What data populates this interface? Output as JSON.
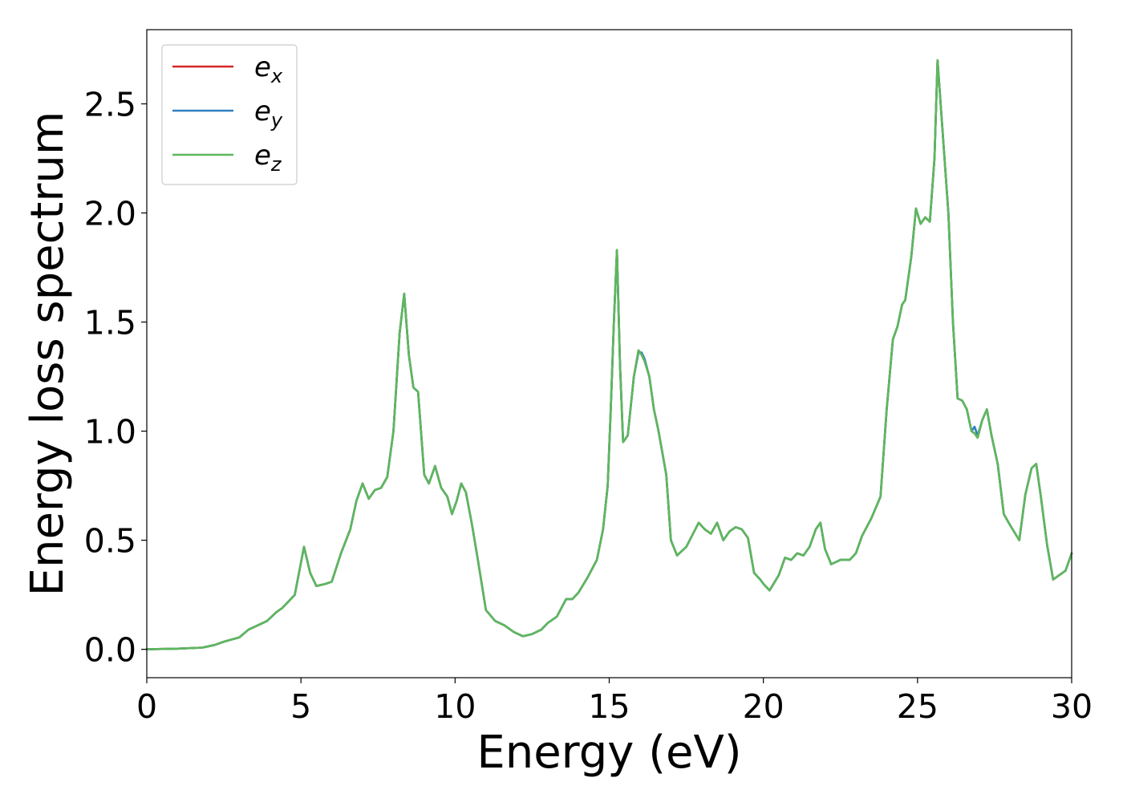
{
  "chart_data": {
    "type": "line",
    "title": "",
    "xlabel": "Energy (eV)",
    "ylabel": "Energy loss spectrum",
    "xlim": [
      0,
      30
    ],
    "ylim": [
      -0.13,
      2.84
    ],
    "xticks": [
      0,
      5,
      10,
      15,
      20,
      25,
      30
    ],
    "yticks": [
      0.0,
      0.5,
      1.0,
      1.5,
      2.0,
      2.5
    ],
    "xtick_labels": [
      "0",
      "5",
      "10",
      "15",
      "20",
      "25",
      "30"
    ],
    "ytick_labels": [
      "0.0",
      "0.5",
      "1.0",
      "1.5",
      "2.0",
      "2.5"
    ],
    "grid": false,
    "legend_position": "top-left",
    "series": [
      {
        "name": "e_x",
        "label_base": "e",
        "label_sub": "x",
        "color": "#d62728",
        "x": [
          0,
          1,
          1.8,
          2.2,
          2.5,
          3,
          3.3,
          3.6,
          3.9,
          4.2,
          4.4,
          4.6,
          4.8,
          5.1,
          5.3,
          5.5,
          5.8,
          6.0,
          6.3,
          6.6,
          6.8,
          7.0,
          7.2,
          7.4,
          7.6,
          7.8,
          8.0,
          8.2,
          8.35,
          8.5,
          8.65,
          8.8,
          9.0,
          9.15,
          9.35,
          9.55,
          9.75,
          9.9,
          10.05,
          10.2,
          10.35,
          10.55,
          10.75,
          11.0,
          11.3,
          11.6,
          11.9,
          12.2,
          12.5,
          12.8,
          13.0,
          13.3,
          13.6,
          13.8,
          14.0,
          14.3,
          14.6,
          14.8,
          14.95,
          15.05,
          15.15,
          15.25,
          15.35,
          15.45,
          15.6,
          15.8,
          15.95,
          16.05,
          16.15,
          16.3,
          16.45,
          16.6,
          16.85,
          17.0,
          17.2,
          17.5,
          17.9,
          18.1,
          18.3,
          18.5,
          18.7,
          18.9,
          19.1,
          19.3,
          19.5,
          19.7,
          19.9,
          20.0,
          20.2,
          20.5,
          20.7,
          20.9,
          21.1,
          21.3,
          21.5,
          21.7,
          21.85,
          22.0,
          22.2,
          22.5,
          22.8,
          23.0,
          23.2,
          23.5,
          23.8,
          24.0,
          24.2,
          24.35,
          24.5,
          24.6,
          24.8,
          24.95,
          25.1,
          25.25,
          25.4,
          25.55,
          25.65,
          25.8,
          26.0,
          26.15,
          26.3,
          26.45,
          26.6,
          26.75,
          26.85,
          26.95,
          27.1,
          27.25,
          27.4,
          27.6,
          27.8,
          28.0,
          28.3,
          28.5,
          28.7,
          28.85,
          29.0,
          29.2,
          29.4,
          29.6,
          29.8,
          30.0
        ],
        "y": [
          0,
          0.003,
          0.008,
          0.02,
          0.035,
          0.055,
          0.09,
          0.11,
          0.13,
          0.17,
          0.19,
          0.22,
          0.25,
          0.47,
          0.35,
          0.29,
          0.3,
          0.31,
          0.44,
          0.55,
          0.68,
          0.76,
          0.69,
          0.73,
          0.74,
          0.79,
          1.0,
          1.45,
          1.63,
          1.35,
          1.2,
          1.18,
          0.8,
          0.76,
          0.84,
          0.74,
          0.7,
          0.62,
          0.68,
          0.76,
          0.72,
          0.57,
          0.4,
          0.18,
          0.13,
          0.11,
          0.08,
          0.06,
          0.07,
          0.09,
          0.12,
          0.15,
          0.23,
          0.23,
          0.26,
          0.33,
          0.41,
          0.55,
          0.75,
          1.1,
          1.5,
          1.83,
          1.3,
          0.95,
          0.98,
          1.25,
          1.37,
          1.35,
          1.32,
          1.25,
          1.1,
          1.0,
          0.8,
          0.5,
          0.43,
          0.47,
          0.58,
          0.55,
          0.53,
          0.58,
          0.5,
          0.54,
          0.56,
          0.55,
          0.51,
          0.35,
          0.32,
          0.3,
          0.27,
          0.34,
          0.42,
          0.41,
          0.44,
          0.43,
          0.47,
          0.55,
          0.58,
          0.46,
          0.39,
          0.41,
          0.41,
          0.44,
          0.52,
          0.6,
          0.7,
          1.1,
          1.42,
          1.48,
          1.58,
          1.6,
          1.8,
          2.02,
          1.95,
          1.98,
          1.96,
          2.25,
          2.7,
          2.4,
          2.0,
          1.5,
          1.15,
          1.14,
          1.1,
          1.0,
          0.99,
          0.97,
          1.05,
          1.1,
          0.98,
          0.85,
          0.62,
          0.57,
          0.5,
          0.71,
          0.83,
          0.85,
          0.7,
          0.48,
          0.32,
          0.34,
          0.36,
          0.44
        ]
      },
      {
        "name": "e_y",
        "label_base": "e",
        "label_sub": "y",
        "color": "#2f7fc1",
        "x": [
          0,
          1,
          1.8,
          2.2,
          2.5,
          3,
          3.3,
          3.6,
          3.9,
          4.2,
          4.4,
          4.6,
          4.8,
          5.1,
          5.3,
          5.5,
          5.8,
          6.0,
          6.3,
          6.6,
          6.8,
          7.0,
          7.2,
          7.4,
          7.6,
          7.8,
          8.0,
          8.2,
          8.35,
          8.5,
          8.65,
          8.8,
          9.0,
          9.15,
          9.35,
          9.55,
          9.75,
          9.9,
          10.05,
          10.2,
          10.35,
          10.55,
          10.75,
          11.0,
          11.3,
          11.6,
          11.9,
          12.2,
          12.5,
          12.8,
          13.0,
          13.3,
          13.6,
          13.8,
          14.0,
          14.3,
          14.6,
          14.8,
          14.95,
          15.05,
          15.15,
          15.25,
          15.35,
          15.45,
          15.6,
          15.8,
          15.95,
          16.05,
          16.15,
          16.3,
          16.45,
          16.6,
          16.85,
          17.0,
          17.2,
          17.5,
          17.9,
          18.1,
          18.3,
          18.5,
          18.7,
          18.9,
          19.1,
          19.3,
          19.5,
          19.7,
          19.9,
          20.0,
          20.2,
          20.5,
          20.7,
          20.9,
          21.1,
          21.3,
          21.5,
          21.7,
          21.85,
          22.0,
          22.2,
          22.5,
          22.8,
          23.0,
          23.2,
          23.5,
          23.8,
          24.0,
          24.2,
          24.35,
          24.5,
          24.6,
          24.8,
          24.95,
          25.1,
          25.25,
          25.4,
          25.55,
          25.65,
          25.8,
          26.0,
          26.15,
          26.3,
          26.45,
          26.6,
          26.75,
          26.85,
          26.95,
          27.1,
          27.25,
          27.4,
          27.6,
          27.8,
          28.0,
          28.3,
          28.5,
          28.7,
          28.85,
          29.0,
          29.2,
          29.4,
          29.6,
          29.8,
          30.0
        ],
        "y": [
          0,
          0.003,
          0.008,
          0.02,
          0.035,
          0.055,
          0.09,
          0.11,
          0.13,
          0.17,
          0.19,
          0.22,
          0.25,
          0.47,
          0.35,
          0.29,
          0.3,
          0.31,
          0.44,
          0.55,
          0.68,
          0.76,
          0.69,
          0.73,
          0.74,
          0.79,
          1.0,
          1.45,
          1.63,
          1.35,
          1.2,
          1.18,
          0.8,
          0.76,
          0.84,
          0.74,
          0.7,
          0.62,
          0.68,
          0.76,
          0.72,
          0.57,
          0.4,
          0.18,
          0.13,
          0.11,
          0.08,
          0.06,
          0.07,
          0.09,
          0.12,
          0.15,
          0.23,
          0.23,
          0.26,
          0.33,
          0.41,
          0.55,
          0.75,
          1.1,
          1.5,
          1.83,
          1.3,
          0.95,
          0.98,
          1.25,
          1.36,
          1.36,
          1.33,
          1.25,
          1.1,
          1.0,
          0.8,
          0.5,
          0.43,
          0.47,
          0.58,
          0.55,
          0.53,
          0.58,
          0.5,
          0.54,
          0.56,
          0.55,
          0.51,
          0.35,
          0.32,
          0.3,
          0.27,
          0.34,
          0.42,
          0.41,
          0.44,
          0.43,
          0.47,
          0.55,
          0.58,
          0.46,
          0.39,
          0.41,
          0.41,
          0.44,
          0.52,
          0.6,
          0.7,
          1.1,
          1.42,
          1.48,
          1.58,
          1.6,
          1.8,
          2.02,
          1.95,
          1.98,
          1.96,
          2.25,
          2.7,
          2.4,
          2.0,
          1.5,
          1.15,
          1.14,
          1.1,
          1.0,
          1.02,
          0.98,
          1.05,
          1.1,
          0.98,
          0.85,
          0.62,
          0.57,
          0.5,
          0.71,
          0.83,
          0.85,
          0.7,
          0.48,
          0.32,
          0.34,
          0.36,
          0.44
        ]
      },
      {
        "name": "e_z",
        "label_base": "e",
        "label_sub": "z",
        "color": "#5cb85c",
        "x": [
          0,
          1,
          1.8,
          2.2,
          2.5,
          3,
          3.3,
          3.6,
          3.9,
          4.2,
          4.4,
          4.6,
          4.8,
          5.1,
          5.3,
          5.5,
          5.8,
          6.0,
          6.3,
          6.6,
          6.8,
          7.0,
          7.2,
          7.4,
          7.6,
          7.8,
          8.0,
          8.2,
          8.35,
          8.5,
          8.65,
          8.8,
          9.0,
          9.15,
          9.35,
          9.55,
          9.75,
          9.9,
          10.05,
          10.2,
          10.35,
          10.55,
          10.75,
          11.0,
          11.3,
          11.6,
          11.9,
          12.2,
          12.5,
          12.8,
          13.0,
          13.3,
          13.6,
          13.8,
          14.0,
          14.3,
          14.6,
          14.8,
          14.95,
          15.05,
          15.15,
          15.25,
          15.35,
          15.45,
          15.6,
          15.8,
          15.95,
          16.05,
          16.15,
          16.3,
          16.45,
          16.6,
          16.85,
          17.0,
          17.2,
          17.5,
          17.9,
          18.1,
          18.3,
          18.5,
          18.7,
          18.9,
          19.1,
          19.3,
          19.5,
          19.7,
          19.9,
          20.0,
          20.2,
          20.5,
          20.7,
          20.9,
          21.1,
          21.3,
          21.5,
          21.7,
          21.85,
          22.0,
          22.2,
          22.5,
          22.8,
          23.0,
          23.2,
          23.5,
          23.8,
          24.0,
          24.2,
          24.35,
          24.5,
          24.6,
          24.8,
          24.95,
          25.1,
          25.25,
          25.4,
          25.55,
          25.65,
          25.8,
          26.0,
          26.15,
          26.3,
          26.45,
          26.6,
          26.75,
          26.85,
          26.95,
          27.1,
          27.25,
          27.4,
          27.6,
          27.8,
          28.0,
          28.3,
          28.5,
          28.7,
          28.85,
          29.0,
          29.2,
          29.4,
          29.6,
          29.8,
          30.0
        ],
        "y": [
          0,
          0.003,
          0.008,
          0.02,
          0.035,
          0.055,
          0.09,
          0.11,
          0.13,
          0.17,
          0.19,
          0.22,
          0.25,
          0.47,
          0.35,
          0.29,
          0.3,
          0.31,
          0.44,
          0.55,
          0.68,
          0.76,
          0.69,
          0.73,
          0.74,
          0.79,
          1.0,
          1.45,
          1.63,
          1.35,
          1.2,
          1.18,
          0.8,
          0.76,
          0.84,
          0.74,
          0.7,
          0.62,
          0.68,
          0.76,
          0.72,
          0.57,
          0.4,
          0.18,
          0.13,
          0.11,
          0.08,
          0.06,
          0.07,
          0.09,
          0.12,
          0.15,
          0.23,
          0.23,
          0.26,
          0.33,
          0.41,
          0.55,
          0.75,
          1.1,
          1.5,
          1.83,
          1.3,
          0.95,
          0.98,
          1.25,
          1.37,
          1.35,
          1.32,
          1.25,
          1.1,
          1.0,
          0.8,
          0.5,
          0.43,
          0.47,
          0.58,
          0.55,
          0.53,
          0.58,
          0.5,
          0.54,
          0.56,
          0.55,
          0.51,
          0.35,
          0.32,
          0.3,
          0.27,
          0.34,
          0.42,
          0.41,
          0.44,
          0.43,
          0.47,
          0.55,
          0.58,
          0.46,
          0.39,
          0.41,
          0.41,
          0.44,
          0.52,
          0.6,
          0.7,
          1.1,
          1.42,
          1.48,
          1.58,
          1.6,
          1.8,
          2.02,
          1.95,
          1.98,
          1.96,
          2.25,
          2.7,
          2.4,
          2.0,
          1.5,
          1.15,
          1.14,
          1.1,
          1.0,
          0.99,
          0.97,
          1.05,
          1.1,
          0.98,
          0.85,
          0.62,
          0.57,
          0.5,
          0.71,
          0.83,
          0.85,
          0.7,
          0.48,
          0.32,
          0.34,
          0.36,
          0.44
        ]
      }
    ]
  }
}
